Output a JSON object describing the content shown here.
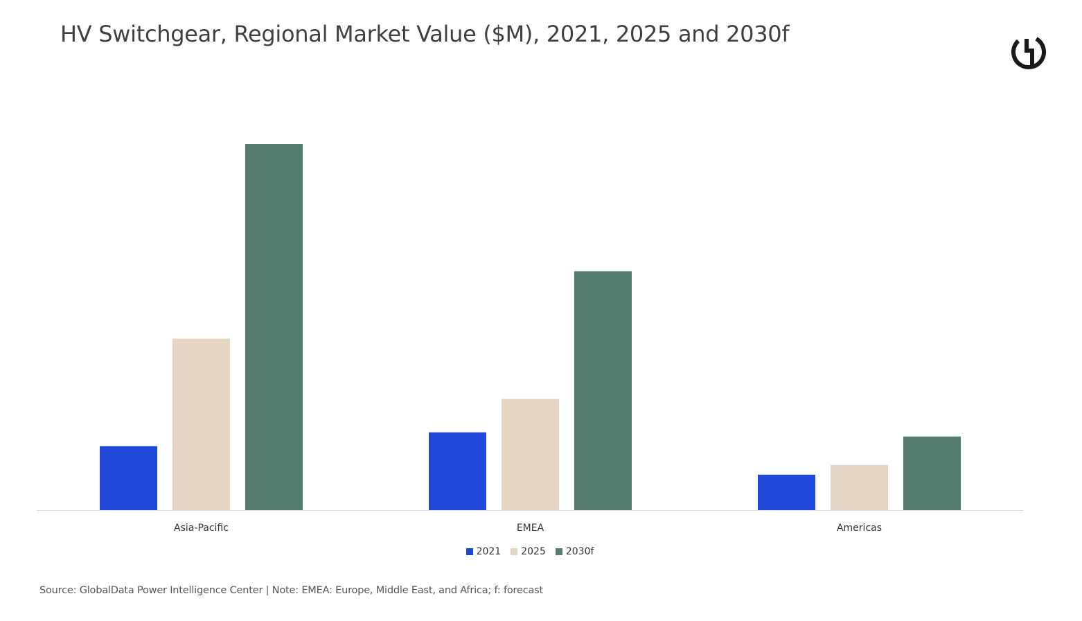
{
  "header": {
    "title": "HV Switchgear, Regional Market Value ($M), 2021, 2025 and 2030f"
  },
  "logo": {
    "icon": "globaldata-logo-icon"
  },
  "footer": {
    "source": "Source: GlobalData Power Intelligence Center | Note: EMEA: Europe, Middle East, and Africa; f: forecast"
  },
  "chart_data": {
    "type": "bar",
    "title": "HV Switchgear, Regional Market Value ($M), 2021, 2025 and 2030f",
    "xlabel": "",
    "ylabel": "",
    "categories": [
      "Asia-Pacific",
      "EMEA",
      "Americas"
    ],
    "series": [
      {
        "name": "2021",
        "color": "#1f48d8",
        "values": [
          920,
          1120,
          510
        ]
      },
      {
        "name": "2025",
        "color": "#e5d7c3",
        "values": [
          2470,
          1600,
          650
        ]
      },
      {
        "name": "2030f",
        "color": "#557d6d",
        "values": [
          5270,
          3440,
          1060
        ]
      }
    ],
    "ylim": [
      0,
      5500
    ],
    "grid": false,
    "y_axis_visible": false,
    "legend_position": "bottom-center"
  }
}
